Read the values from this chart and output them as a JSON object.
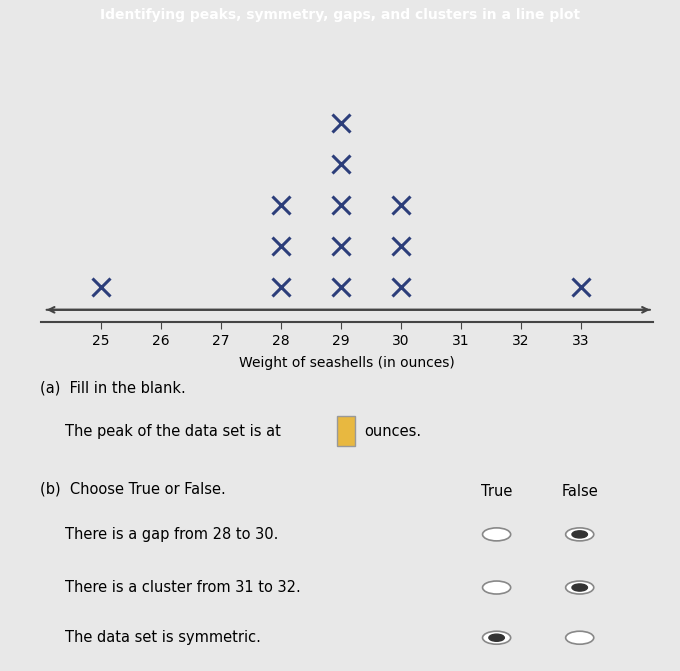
{
  "title": "Identifying peaks, symmetry, gaps, and clusters in a line plot",
  "title_bg_color": "#4ab8c4",
  "title_text_color": "white",
  "xlabel": "Weight of seashells (in ounces)",
  "x_min": 24.0,
  "x_max": 34.2,
  "x_ticks": [
    25,
    26,
    27,
    28,
    29,
    30,
    31,
    32,
    33
  ],
  "dot_plot_data": {
    "25": 1,
    "28": 3,
    "29": 5,
    "30": 3,
    "33": 1
  },
  "marker_color": "#2c3e7a",
  "marker_size": 13,
  "marker_linewidth": 2.2,
  "axis_color": "#444444",
  "section_a_title": "(a)  Fill in the blank.",
  "section_a_text": "The peak of the data set is at",
  "section_a_suffix": "ounces.",
  "section_b_title": "(b)  Choose True or False.",
  "true_false_header": [
    "True",
    "False"
  ],
  "statements": [
    "There is a gap from 28 to 30.",
    "There is a cluster from 31 to 32.",
    "The data set is symmetric."
  ],
  "answers": [
    [
      false,
      true
    ],
    [
      false,
      true
    ],
    [
      true,
      false
    ]
  ],
  "plot_bg_color": "#e8e8e8",
  "box_bg_color": "white",
  "radio_filled_color": "#333333",
  "blank_fill_color": "#e8b840"
}
